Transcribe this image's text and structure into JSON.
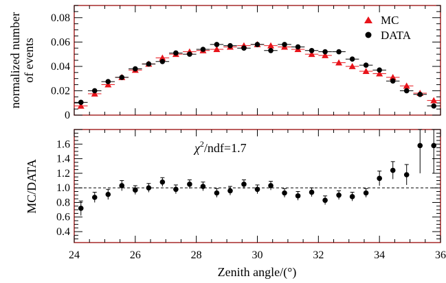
{
  "chart_data": [
    {
      "type": "scatter",
      "panel": "top",
      "ylabel": "normalized number of events",
      "ylabel_lines": [
        "normalized number",
        "of events"
      ],
      "xlim": [
        24,
        36
      ],
      "ylim": [
        0,
        0.09
      ],
      "yticks": [
        0,
        0.02,
        0.04,
        0.06,
        0.08
      ],
      "ytick_labels": [
        "0",
        "0.02",
        "0.04",
        "0.06",
        "0.08"
      ],
      "xerr": 0.22,
      "legend_position": "top-right",
      "series": [
        {
          "name": "MC",
          "color": "#e8141b",
          "marker": "triangle",
          "x": [
            24.22,
            24.67,
            25.11,
            25.56,
            26.0,
            26.44,
            26.89,
            27.33,
            27.78,
            28.22,
            28.67,
            29.11,
            29.56,
            30.0,
            30.44,
            30.89,
            31.33,
            31.78,
            32.22,
            32.67,
            33.11,
            33.56,
            34.0,
            34.44,
            34.89,
            35.33,
            35.78
          ],
          "y": [
            0.0075,
            0.0175,
            0.025,
            0.031,
            0.037,
            0.042,
            0.047,
            0.05,
            0.052,
            0.053,
            0.054,
            0.056,
            0.057,
            0.058,
            0.057,
            0.056,
            0.054,
            0.05,
            0.049,
            0.043,
            0.04,
            0.036,
            0.034,
            0.031,
            0.024,
            0.018,
            0.012
          ]
        },
        {
          "name": "DATA",
          "color": "#000000",
          "marker": "circle",
          "x": [
            24.22,
            24.67,
            25.11,
            25.56,
            26.0,
            26.44,
            26.89,
            27.33,
            27.78,
            28.22,
            28.67,
            29.11,
            29.56,
            30.0,
            30.44,
            30.89,
            31.33,
            31.78,
            32.22,
            32.67,
            33.11,
            33.56,
            34.0,
            34.44,
            34.89,
            35.33,
            35.78
          ],
          "y": [
            0.0105,
            0.02,
            0.0275,
            0.031,
            0.038,
            0.042,
            0.044,
            0.051,
            0.05,
            0.054,
            0.058,
            0.057,
            0.055,
            0.058,
            0.053,
            0.058,
            0.056,
            0.053,
            0.052,
            0.052,
            0.046,
            0.041,
            0.037,
            0.028,
            0.02,
            0.017,
            0.0075
          ],
          "yerr": [
            0.0008,
            0.0008,
            0.0008,
            0.0008,
            0.0008,
            0.0008,
            0.0008,
            0.0012,
            0.0012,
            0.0012,
            0.0012,
            0.0012,
            0.0012,
            0.0012,
            0.0012,
            0.0012,
            0.0012,
            0.0012,
            0.0012,
            0.0012,
            0.0012,
            0.0012,
            0.0012,
            0.0012,
            0.0012,
            0.0012,
            0.0012
          ]
        }
      ]
    },
    {
      "type": "scatter",
      "panel": "bottom",
      "xlabel": "Zenith angle/(°)",
      "ylabel": "MC/DATA",
      "xlim": [
        24,
        36
      ],
      "ylim": [
        0.25,
        1.8
      ],
      "xticks": [
        24,
        26,
        28,
        30,
        32,
        34,
        36
      ],
      "xtick_labels": [
        "24",
        "26",
        "28",
        "30",
        "32",
        "34",
        "36"
      ],
      "yticks": [
        0.4,
        0.6,
        0.8,
        1.0,
        1.2,
        1.4,
        1.6
      ],
      "ytick_labels": [
        "0.4",
        "0.6",
        "0.8",
        "1.0",
        "1.2",
        "1.4",
        "1.6"
      ],
      "reference_line": 1.0,
      "annotation": {
        "text": "χ²/ndf=1.7",
        "base": "χ",
        "sup": "2",
        "rest": "/ndf=1.7"
      },
      "series": [
        {
          "color": "#000000",
          "marker": "circle",
          "x": [
            24.22,
            24.67,
            25.11,
            25.56,
            26.0,
            26.44,
            26.89,
            27.33,
            27.78,
            28.22,
            28.67,
            29.11,
            29.56,
            30.0,
            30.44,
            30.89,
            31.33,
            31.78,
            32.22,
            32.67,
            33.11,
            33.56,
            34.0,
            34.44,
            34.89,
            35.33,
            35.78
          ],
          "y": [
            0.72,
            0.87,
            0.91,
            1.03,
            0.97,
            1.0,
            1.08,
            0.98,
            1.05,
            1.02,
            0.93,
            0.96,
            1.05,
            0.98,
            1.03,
            0.93,
            0.89,
            0.94,
            0.83,
            0.9,
            0.88,
            0.93,
            1.13,
            1.24,
            1.18,
            1.58,
            1.58
          ],
          "yerr": [
            0.1,
            0.07,
            0.07,
            0.07,
            0.06,
            0.06,
            0.06,
            0.06,
            0.06,
            0.06,
            0.06,
            0.06,
            0.06,
            0.06,
            0.06,
            0.06,
            0.06,
            0.06,
            0.06,
            0.06,
            0.06,
            0.06,
            0.1,
            0.12,
            0.14,
            0.38,
            0.38
          ]
        }
      ]
    }
  ]
}
